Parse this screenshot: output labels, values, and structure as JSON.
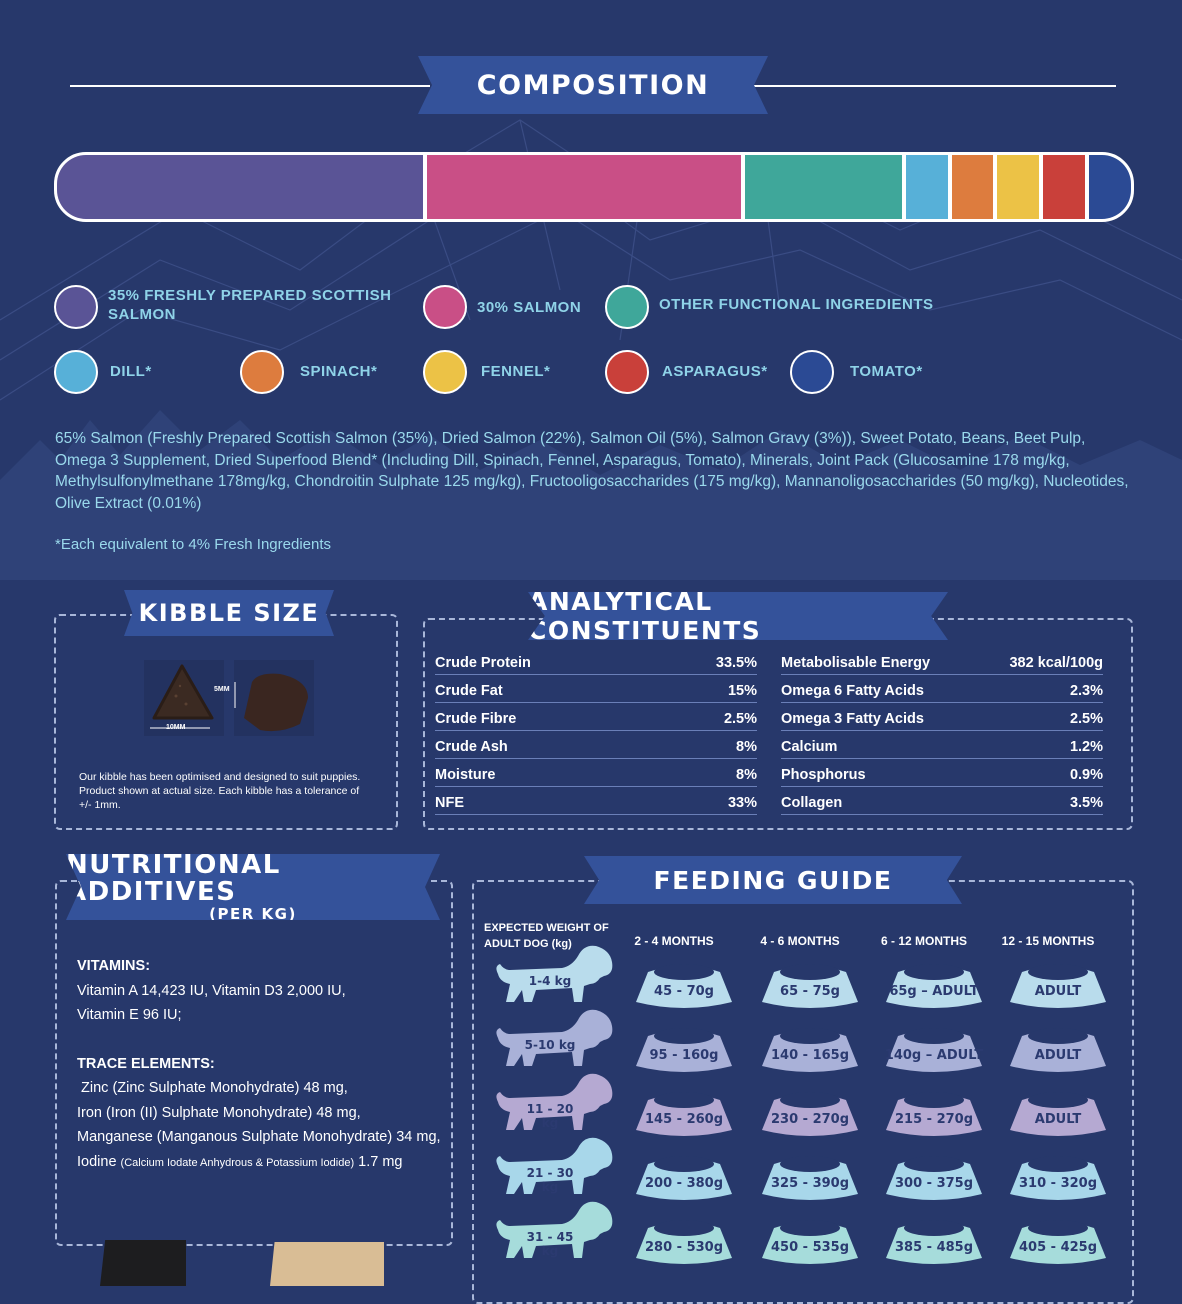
{
  "composition": {
    "title": "COMPOSITION",
    "segments": [
      {
        "share": 35,
        "color": "#5a5496"
      },
      {
        "share": 30,
        "color": "#c94f86"
      },
      {
        "share": 15,
        "color": "#3fa79a"
      },
      {
        "share": 4,
        "color": "#57b0d8"
      },
      {
        "share": 4,
        "color": "#dd7c3e"
      },
      {
        "share": 4,
        "color": "#ecc246"
      },
      {
        "share": 4,
        "color": "#c9403a"
      },
      {
        "share": 4,
        "color": "#2b4a94"
      }
    ],
    "legend": [
      {
        "label_line1": "35% FRESHLY PREPARED SCOTTISH",
        "label_line2": "SALMON",
        "color": "#5a5496"
      },
      {
        "label_line1": "30% SALMON",
        "label_line2": "",
        "color": "#c94f86"
      },
      {
        "label_line1": "OTHER FUNCTIONAL INGREDIENTS",
        "label_line2": "",
        "color": "#3fa79a"
      },
      {
        "label_line1": "DILL*",
        "label_line2": "",
        "color": "#57b0d8"
      },
      {
        "label_line1": "SPINACH*",
        "label_line2": "",
        "color": "#dd7c3e"
      },
      {
        "label_line1": "FENNEL*",
        "label_line2": "",
        "color": "#ecc246"
      },
      {
        "label_line1": "ASPARAGUS*",
        "label_line2": "",
        "color": "#c9403a"
      },
      {
        "label_line1": "TOMATO*",
        "label_line2": "",
        "color": "#2b4a94"
      }
    ],
    "ingredients": "65% Salmon (Freshly Prepared Scottish Salmon (35%), Dried Salmon (22%), Salmon Oil (5%), Salmon Gravy (3%)), Sweet Potato, Beans, Beet Pulp, Omega 3 Supplement, Dried Superfood Blend* (Including Dill, Spinach, Fennel, Asparagus, Tomato), Minerals,  Joint Pack (Glucosamine 178 mg/kg,  Methylsulfonylmethane 178mg/kg, Chondroitin Sulphate 125 mg/kg), Fructooligosaccharides (175 mg/kg), Mannanoligosaccharides (50 mg/kg), Nucleotides, Olive Extract (0.01%)",
    "footnote": "*Each equivalent to 4% Fresh Ingredients"
  },
  "kibble": {
    "title": "KIBBLE SIZE",
    "width_label": "10MM",
    "height_label": "5MM",
    "note": "Our kibble has been optimised and designed to suit puppies. Product shown at actual size. Each kibble has a tolerance of +/- 1mm."
  },
  "analytical": {
    "title": "ANALYTICAL CONSTITUENTS",
    "left": [
      {
        "name": "Crude Protein",
        "value": "33.5%"
      },
      {
        "name": "Crude Fat",
        "value": "15%"
      },
      {
        "name": "Crude Fibre",
        "value": "2.5%"
      },
      {
        "name": "Crude Ash",
        "value": "8%"
      },
      {
        "name": "Moisture",
        "value": "8%"
      },
      {
        "name": "NFE",
        "value": "33%"
      }
    ],
    "right": [
      {
        "name": "Metabolisable Energy",
        "value": "382 kcal/100g"
      },
      {
        "name": "Omega 6 Fatty Acids",
        "value": "2.3%"
      },
      {
        "name": "Omega 3 Fatty Acids",
        "value": "2.5%"
      },
      {
        "name": "Calcium",
        "value": "1.2%"
      },
      {
        "name": "Phosphorus",
        "value": "0.9%"
      },
      {
        "name": "Collagen",
        "value": "3.5%"
      }
    ]
  },
  "additives": {
    "title": "NUTRITIONAL ADDITIVES",
    "subtitle": "(PER KG)",
    "vitamins_heading": "VITAMINS:",
    "vitamins_line1": "Vitamin A 14,423 IU, Vitamin D3 2,000 IU,",
    "vitamins_line2": "Vitamin E 96 IU;",
    "trace_heading": "TRACE ELEMENTS:",
    "trace_line1": " Zinc (Zinc Sulphate Monohydrate) 48 mg,",
    "trace_line2": "Iron (Iron (II) Sulphate Monohydrate) 48 mg,",
    "trace_line3": "Manganese (Manganous Sulphate Monohydrate) 34 mg,",
    "trace_line4_a": "Iodine ",
    "trace_line4_b": "(Calcium Iodate Anhydrous & Potassium Iodide)",
    "trace_line4_c": " 1.7 mg"
  },
  "feeding": {
    "title": "FEEDING GUIDE",
    "weight_header_line1": "EXPECTED WEIGHT OF",
    "weight_header_line2": "ADULT DOG (kg)",
    "age_headers": [
      "2 - 4 MONTHS",
      "4 - 6 MONTHS",
      "6 - 12 MONTHS",
      "12 - 15 MONTHS"
    ],
    "rows": [
      {
        "weight": "1-4 kg",
        "color": "#b9dcec",
        "amounts": [
          "45 - 70g",
          "65 - 75g",
          "65g – ADULT",
          "ADULT"
        ]
      },
      {
        "weight": "5-10 kg",
        "color": "#a9b1d8",
        "amounts": [
          "95 - 160g",
          "140 - 165g",
          "140g – ADULT",
          "ADULT"
        ]
      },
      {
        "weight": "11 - 20 kg",
        "color": "#b5a9d2",
        "amounts": [
          "145 - 260g",
          "230 - 270g",
          "215 - 270g",
          "ADULT"
        ]
      },
      {
        "weight": "21 - 30 kg",
        "color": "#a8d7ea",
        "amounts": [
          "200 - 380g",
          "325 - 390g",
          "300 - 375g",
          "310 - 320g"
        ]
      },
      {
        "weight": "31 - 45 kg",
        "color": "#a6dcdb",
        "amounts": [
          "280 - 530g",
          "450 - 535g",
          "385 - 485g",
          "405 - 425g"
        ]
      }
    ]
  }
}
